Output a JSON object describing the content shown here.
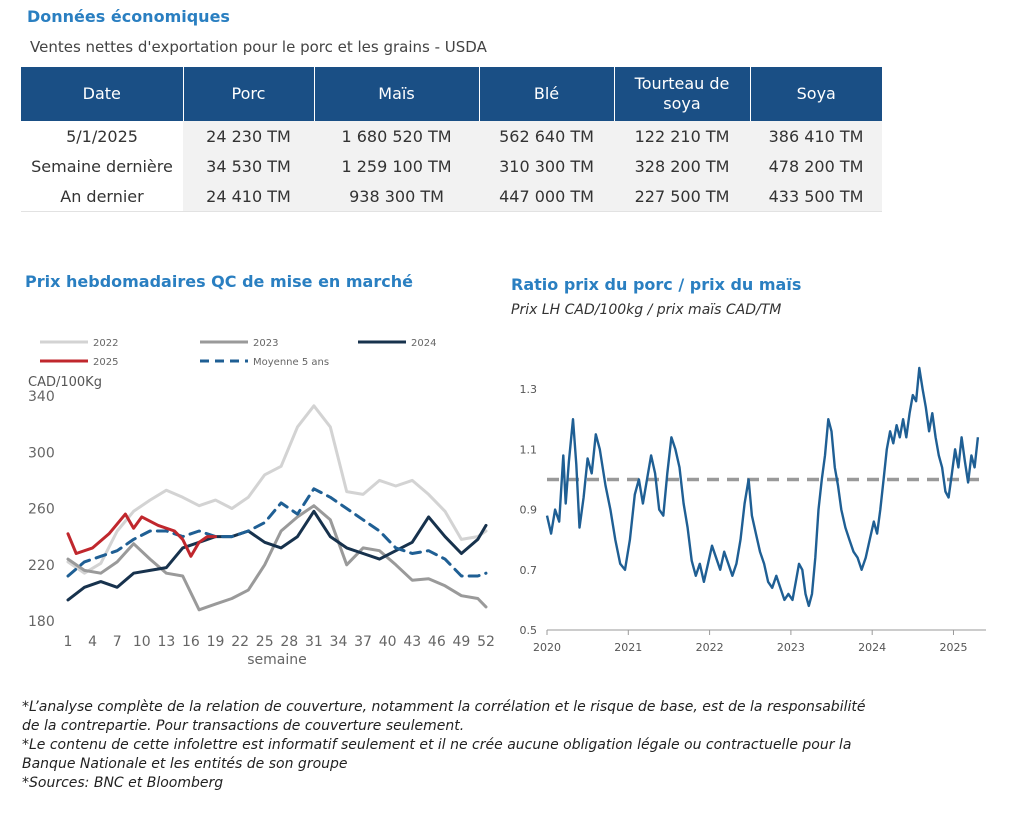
{
  "economics": {
    "title": "Données économiques",
    "subtitle": "Ventes nettes d'exportation pour le porc et les grains - USDA",
    "headers": [
      "Date",
      "Porc",
      "Maïs",
      "Blé",
      "Tourteau de soya",
      "Soya"
    ],
    "rows": [
      [
        "5/1/2025",
        "24 230 TM",
        "1 680 520 TM",
        "562 640 TM",
        "122 210 TM",
        "386 410 TM"
      ],
      [
        "Semaine dernière",
        "34 530 TM",
        "1 259 100 TM",
        "310 300 TM",
        "328 200 TM",
        "478 200 TM"
      ],
      [
        "An dernier",
        "24 410 TM",
        "938 300 TM",
        "447 000 TM",
        "227 500 TM",
        "433 500 TM"
      ]
    ]
  },
  "chart_titles": {
    "left": "Prix hebdomadaires QC de mise en marché",
    "right": "Ratio prix du porc / prix du maïs",
    "right_sub": "Prix LH CAD/100kg / prix maïs CAD/TM"
  },
  "chart_data": [
    {
      "type": "line",
      "title": "Prix hebdomadaires QC de mise en marché",
      "ylabel": "CAD/100Kg",
      "xlabel": "semaine",
      "ylim": [
        180,
        340
      ],
      "xlim": [
        1,
        52
      ],
      "x_ticks": [
        1,
        4,
        7,
        10,
        13,
        16,
        19,
        22,
        25,
        28,
        31,
        34,
        37,
        40,
        43,
        46,
        49,
        52
      ],
      "y_ticks": [
        180,
        220,
        260,
        300,
        340
      ],
      "grid": false,
      "legend_position": "top",
      "series": [
        {
          "name": "2022",
          "color": "#d3d3d3",
          "dash": false,
          "points": [
            [
              1,
              222
            ],
            [
              3,
              214
            ],
            [
              5,
              221
            ],
            [
              7,
              244
            ],
            [
              9,
              258
            ],
            [
              11,
              266
            ],
            [
              13,
              273
            ],
            [
              15,
              268
            ],
            [
              17,
              262
            ],
            [
              19,
              266
            ],
            [
              21,
              260
            ],
            [
              23,
              268
            ],
            [
              25,
              284
            ],
            [
              27,
              290
            ],
            [
              29,
              318
            ],
            [
              31,
              333
            ],
            [
              33,
              318
            ],
            [
              35,
              272
            ],
            [
              37,
              270
            ],
            [
              39,
              280
            ],
            [
              41,
              276
            ],
            [
              43,
              280
            ],
            [
              45,
              270
            ],
            [
              47,
              258
            ],
            [
              49,
              238
            ],
            [
              51,
              240
            ],
            [
              52,
              244
            ]
          ]
        },
        {
          "name": "2023",
          "color": "#9a9a9a",
          "dash": false,
          "points": [
            [
              1,
              224
            ],
            [
              3,
              216
            ],
            [
              5,
              214
            ],
            [
              7,
              222
            ],
            [
              9,
              235
            ],
            [
              11,
              224
            ],
            [
              13,
              214
            ],
            [
              15,
              212
            ],
            [
              17,
              188
            ],
            [
              19,
              192
            ],
            [
              21,
              196
            ],
            [
              23,
              202
            ],
            [
              25,
              220
            ],
            [
              27,
              244
            ],
            [
              29,
              254
            ],
            [
              31,
              262
            ],
            [
              33,
              252
            ],
            [
              35,
              220
            ],
            [
              37,
              232
            ],
            [
              39,
              230
            ],
            [
              41,
              220
            ],
            [
              43,
              209
            ],
            [
              45,
              210
            ],
            [
              47,
              205
            ],
            [
              49,
              198
            ],
            [
              51,
              196
            ],
            [
              52,
              190
            ]
          ]
        },
        {
          "name": "2024",
          "color": "#17324d",
          "dash": false,
          "points": [
            [
              1,
              195
            ],
            [
              3,
              204
            ],
            [
              5,
              208
            ],
            [
              7,
              204
            ],
            [
              9,
              214
            ],
            [
              11,
              216
            ],
            [
              13,
              218
            ],
            [
              15,
              232
            ],
            [
              17,
              236
            ],
            [
              19,
              240
            ],
            [
              21,
              240
            ],
            [
              23,
              244
            ],
            [
              25,
              236
            ],
            [
              27,
              232
            ],
            [
              29,
              240
            ],
            [
              31,
              258
            ],
            [
              33,
              240
            ],
            [
              35,
              232
            ],
            [
              37,
              228
            ],
            [
              39,
              224
            ],
            [
              41,
              230
            ],
            [
              43,
              236
            ],
            [
              45,
              254
            ],
            [
              47,
              240
            ],
            [
              49,
              228
            ],
            [
              51,
              238
            ],
            [
              52,
              248
            ]
          ]
        },
        {
          "name": "2025",
          "color": "#c0272d",
          "dash": false,
          "points": [
            [
              1,
              242
            ],
            [
              2,
              228
            ],
            [
              4,
              232
            ],
            [
              6,
              242
            ],
            [
              8,
              256
            ],
            [
              9,
              246
            ],
            [
              10,
              254
            ],
            [
              12,
              248
            ],
            [
              14,
              244
            ],
            [
              15,
              238
            ],
            [
              16,
              226
            ],
            [
              17,
              236
            ],
            [
              18,
              240
            ],
            [
              19,
              240
            ]
          ]
        },
        {
          "name": "Moyenne 5 ans",
          "color": "#1f5f94",
          "dash": true,
          "points": [
            [
              1,
              212
            ],
            [
              3,
              222
            ],
            [
              5,
              226
            ],
            [
              7,
              230
            ],
            [
              9,
              238
            ],
            [
              11,
              244
            ],
            [
              13,
              244
            ],
            [
              15,
              240
            ],
            [
              17,
              244
            ],
            [
              19,
              240
            ],
            [
              21,
              240
            ],
            [
              23,
              244
            ],
            [
              25,
              250
            ],
            [
              27,
              264
            ],
            [
              29,
              256
            ],
            [
              31,
              274
            ],
            [
              33,
              268
            ],
            [
              35,
              260
            ],
            [
              37,
              252
            ],
            [
              39,
              244
            ],
            [
              41,
              232
            ],
            [
              43,
              228
            ],
            [
              45,
              230
            ],
            [
              47,
              224
            ],
            [
              49,
              212
            ],
            [
              51,
              212
            ],
            [
              52,
              214
            ]
          ]
        }
      ]
    },
    {
      "type": "line",
      "title": "Ratio prix du porc / prix du maïs",
      "subtitle": "Prix LH CAD/100kg / prix maïs CAD/TM",
      "ylim": [
        0.5,
        1.4
      ],
      "xlim": [
        2020.0,
        2025.4
      ],
      "y_ticks": [
        "0.5",
        "0.7",
        "0.9",
        "1.1",
        "1.3"
      ],
      "x_ticks": [
        "2020",
        "2021",
        "2022",
        "2023",
        "2024",
        "2025"
      ],
      "reference_line": {
        "y": 1.0,
        "color": "#999999",
        "dash": true
      },
      "grid": false,
      "series": [
        {
          "color": "#1f5f94",
          "points": [
            [
              2020.0,
              0.88
            ],
            [
              2020.05,
              0.82
            ],
            [
              2020.1,
              0.9
            ],
            [
              2020.15,
              0.86
            ],
            [
              2020.2,
              1.08
            ],
            [
              2020.23,
              0.92
            ],
            [
              2020.27,
              1.06
            ],
            [
              2020.32,
              1.2
            ],
            [
              2020.36,
              1.05
            ],
            [
              2020.4,
              0.84
            ],
            [
              2020.45,
              0.94
            ],
            [
              2020.5,
              1.07
            ],
            [
              2020.55,
              1.02
            ],
            [
              2020.6,
              1.15
            ],
            [
              2020.65,
              1.1
            ],
            [
              2020.72,
              0.98
            ],
            [
              2020.78,
              0.9
            ],
            [
              2020.84,
              0.8
            ],
            [
              2020.9,
              0.72
            ],
            [
              2020.96,
              0.7
            ],
            [
              2021.02,
              0.8
            ],
            [
              2021.08,
              0.95
            ],
            [
              2021.13,
              1.0
            ],
            [
              2021.18,
              0.92
            ],
            [
              2021.23,
              1.0
            ],
            [
              2021.28,
              1.08
            ],
            [
              2021.33,
              1.02
            ],
            [
              2021.38,
              0.9
            ],
            [
              2021.43,
              0.88
            ],
            [
              2021.48,
              1.02
            ],
            [
              2021.53,
              1.14
            ],
            [
              2021.58,
              1.1
            ],
            [
              2021.63,
              1.04
            ],
            [
              2021.68,
              0.92
            ],
            [
              2021.73,
              0.84
            ],
            [
              2021.78,
              0.73
            ],
            [
              2021.83,
              0.68
            ],
            [
              2021.88,
              0.72
            ],
            [
              2021.93,
              0.66
            ],
            [
              2021.98,
              0.72
            ],
            [
              2022.03,
              0.78
            ],
            [
              2022.08,
              0.74
            ],
            [
              2022.13,
              0.7
            ],
            [
              2022.18,
              0.76
            ],
            [
              2022.23,
              0.72
            ],
            [
              2022.28,
              0.68
            ],
            [
              2022.33,
              0.72
            ],
            [
              2022.38,
              0.8
            ],
            [
              2022.43,
              0.92
            ],
            [
              2022.48,
              1.0
            ],
            [
              2022.52,
              0.88
            ],
            [
              2022.57,
              0.82
            ],
            [
              2022.62,
              0.76
            ],
            [
              2022.67,
              0.72
            ],
            [
              2022.72,
              0.66
            ],
            [
              2022.77,
              0.64
            ],
            [
              2022.82,
              0.68
            ],
            [
              2022.87,
              0.64
            ],
            [
              2022.92,
              0.6
            ],
            [
              2022.97,
              0.62
            ],
            [
              2023.02,
              0.6
            ],
            [
              2023.06,
              0.66
            ],
            [
              2023.1,
              0.72
            ],
            [
              2023.14,
              0.7
            ],
            [
              2023.18,
              0.62
            ],
            [
              2023.22,
              0.58
            ],
            [
              2023.26,
              0.62
            ],
            [
              2023.3,
              0.74
            ],
            [
              2023.34,
              0.9
            ],
            [
              2023.38,
              1.0
            ],
            [
              2023.42,
              1.08
            ],
            [
              2023.46,
              1.2
            ],
            [
              2023.5,
              1.16
            ],
            [
              2023.54,
              1.04
            ],
            [
              2023.58,
              0.98
            ],
            [
              2023.62,
              0.9
            ],
            [
              2023.67,
              0.84
            ],
            [
              2023.72,
              0.8
            ],
            [
              2023.77,
              0.76
            ],
            [
              2023.82,
              0.74
            ],
            [
              2023.87,
              0.7
            ],
            [
              2023.92,
              0.74
            ],
            [
              2023.97,
              0.8
            ],
            [
              2024.02,
              0.86
            ],
            [
              2024.06,
              0.82
            ],
            [
              2024.1,
              0.9
            ],
            [
              2024.14,
              1.0
            ],
            [
              2024.18,
              1.1
            ],
            [
              2024.22,
              1.16
            ],
            [
              2024.26,
              1.12
            ],
            [
              2024.3,
              1.18
            ],
            [
              2024.34,
              1.14
            ],
            [
              2024.38,
              1.2
            ],
            [
              2024.42,
              1.14
            ],
            [
              2024.46,
              1.22
            ],
            [
              2024.5,
              1.28
            ],
            [
              2024.54,
              1.26
            ],
            [
              2024.58,
              1.37
            ],
            [
              2024.62,
              1.3
            ],
            [
              2024.66,
              1.24
            ],
            [
              2024.7,
              1.16
            ],
            [
              2024.74,
              1.22
            ],
            [
              2024.78,
              1.14
            ],
            [
              2024.82,
              1.08
            ],
            [
              2024.86,
              1.04
            ],
            [
              2024.9,
              0.96
            ],
            [
              2024.94,
              0.94
            ],
            [
              2024.98,
              1.02
            ],
            [
              2025.02,
              1.1
            ],
            [
              2025.06,
              1.04
            ],
            [
              2025.1,
              1.14
            ],
            [
              2025.14,
              1.06
            ],
            [
              2025.18,
              0.99
            ],
            [
              2025.22,
              1.08
            ],
            [
              2025.26,
              1.04
            ],
            [
              2025.3,
              1.14
            ]
          ]
        }
      ]
    }
  ],
  "notes": [
    "*L’analyse complète de la relation de couverture, notamment la corrélation et le risque de base, est de la responsabilité de la contrepartie. Pour transactions de couverture seulement.",
    "*Le contenu de cette infolettre est informatif seulement et il ne crée aucune obligation légale ou contractuelle pour la Banque Nationale et les entités de son groupe",
    "*Sources: BNC et Bloomberg"
  ]
}
